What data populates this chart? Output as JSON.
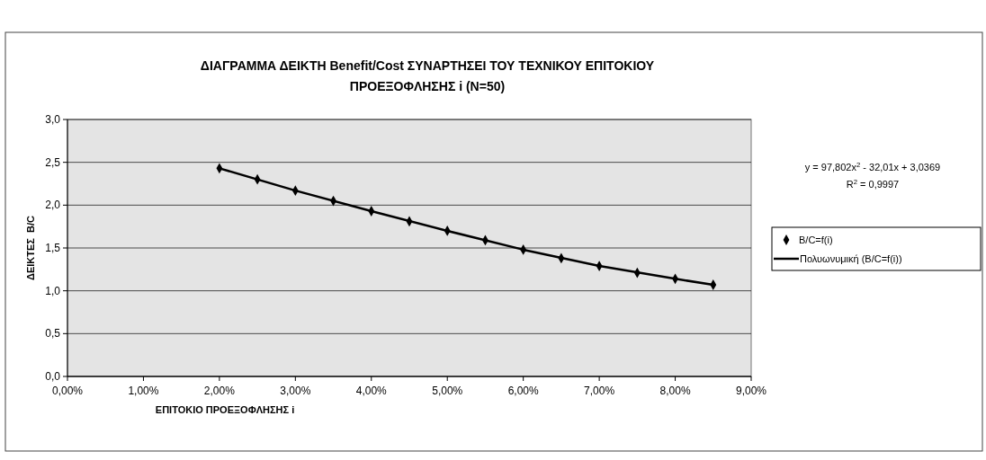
{
  "chart_data": {
    "type": "scatter",
    "title": "ΔΙΑΓΡΑΜΜΑ ΔΕΙΚΤΗ Benefit/Cost ΣΥΝΑΡΤΗΣΕΙ ΤΟΥ ΤΕΧΝΙΚΟΥ ΕΠΙΤΟΚΙΟΥ\nΠΡΟΕΞΟΦΛΗΣΗΣ i (N=50)",
    "xlabel": "ΕΠΙΤΟΚΙΟ ΠΡΟΕΞΟΦΛΗΣΗΣ i",
    "ylabel": "ΔΕΙΚΤΕΣ  B/C",
    "annotations": [
      "y = 97,802x$^{2}$ - 32,01x + 3,0369",
      "R$^{2}$ = 0,9997"
    ],
    "series": [
      {
        "name": "B/C=f(i)",
        "color": "#000000",
        "marker": "diamond",
        "x": [
          2,
          2.5,
          3,
          3.5,
          4,
          4.5,
          5,
          5.5,
          6,
          6.5,
          7,
          7.5,
          8,
          8.5
        ],
        "values": [
          2.43,
          2.3,
          2.17,
          2.05,
          1.93,
          1.81,
          1.7,
          1.59,
          1.48,
          1.38,
          1.29,
          1.21,
          1.14,
          1.07
        ]
      },
      {
        "name": "Πολυωνυμική (B/C=f(i))",
        "type": "line",
        "color": "#000000",
        "line_style": "solid",
        "x": [
          2,
          3,
          4,
          5,
          6,
          7,
          8,
          8.5
        ],
        "values": [
          2.43,
          2.17,
          1.93,
          1.7,
          1.48,
          1.29,
          1.14,
          1.07
        ]
      }
    ],
    "xlim": [
      0,
      9
    ],
    "xticks": [
      {
        "value": 0,
        "label": "0,00%"
      },
      {
        "value": 1,
        "label": "1,00%"
      },
      {
        "value": 2,
        "label": "2,00%"
      },
      {
        "value": 3,
        "label": "3,00%"
      },
      {
        "value": 4,
        "label": "4,00%"
      },
      {
        "value": 5,
        "label": "5,00%"
      },
      {
        "value": 6,
        "label": "6,00%"
      },
      {
        "value": 7,
        "label": "7,00%"
      },
      {
        "value": 8,
        "label": "8,00%"
      },
      {
        "value": 9,
        "label": "9,00%"
      }
    ],
    "ylim": [
      0,
      3
    ],
    "yticks": [
      {
        "value": 0,
        "label": "0,0"
      },
      {
        "value": 0.5,
        "label": "0,5"
      },
      {
        "value": 1,
        "label": "1,0"
      },
      {
        "value": 1.5,
        "label": "1,5"
      },
      {
        "value": 2,
        "label": "2,0"
      },
      {
        "value": 2.5,
        "label": "2,5"
      },
      {
        "value": 3,
        "label": "3,0"
      }
    ],
    "grid": "y",
    "legend": "right"
  }
}
